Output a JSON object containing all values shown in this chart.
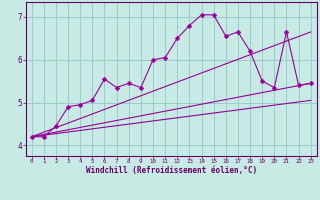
{
  "title": "",
  "xlabel": "Windchill (Refroidissement éolien,°C)",
  "ylabel": "",
  "bg_color": "#c8eae4",
  "line_color": "#990099",
  "grid_color": "#99cccc",
  "xlim": [
    -0.5,
    23.5
  ],
  "ylim": [
    3.75,
    7.35
  ],
  "xticks": [
    0,
    1,
    2,
    3,
    4,
    5,
    6,
    7,
    8,
    9,
    10,
    11,
    12,
    13,
    14,
    15,
    16,
    17,
    18,
    19,
    20,
    21,
    22,
    23
  ],
  "yticks": [
    4,
    5,
    6,
    7
  ],
  "line1_x": [
    0,
    1,
    2,
    3,
    4,
    5,
    6,
    7,
    8,
    9,
    10,
    11,
    12,
    13,
    14,
    15,
    16,
    17,
    18,
    19,
    20,
    21,
    22,
    23
  ],
  "line1_y": [
    4.2,
    4.2,
    4.45,
    4.9,
    4.95,
    5.05,
    5.55,
    5.35,
    5.45,
    5.35,
    6.0,
    6.05,
    6.5,
    6.8,
    7.05,
    7.05,
    6.55,
    6.65,
    6.2,
    5.5,
    5.35,
    6.65,
    5.4,
    5.45
  ],
  "line2_x": [
    0,
    23
  ],
  "line2_y": [
    4.2,
    5.45
  ],
  "line3_x": [
    0,
    23
  ],
  "line3_y": [
    4.2,
    5.05
  ],
  "line4_x": [
    0,
    23
  ],
  "line4_y": [
    4.2,
    6.65
  ]
}
